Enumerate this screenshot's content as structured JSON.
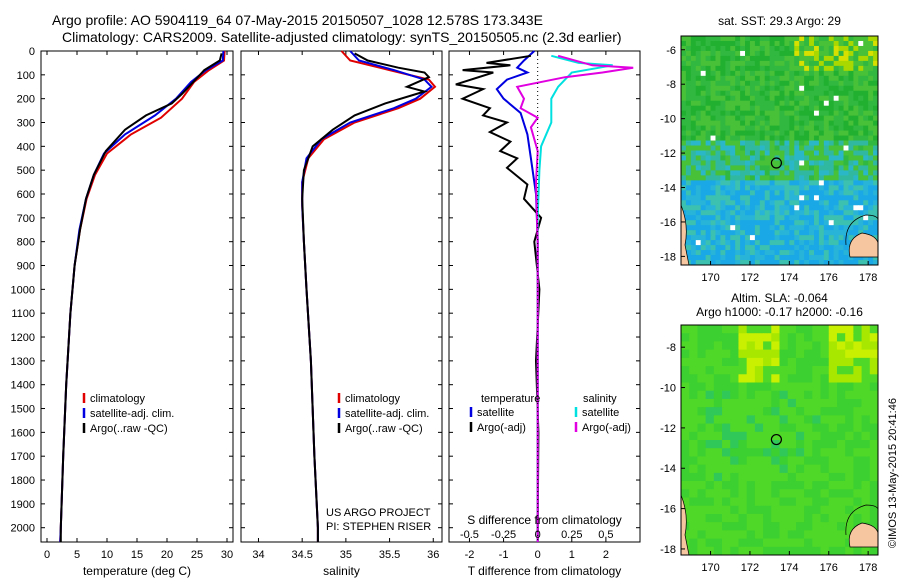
{
  "header": {
    "line1": "Argo profile: AO 5904119_64 07-May-2015 20150507_1028 12.578S 173.343E",
    "line2": "Climatology: CARS2009. Satellite-adjusted climatology: synTS_20150505.nc (2.3d earlier)"
  },
  "colors": {
    "climatology": "#e00000",
    "satellite": "#0000e0",
    "argo": "#000000",
    "sat_salinity": "#00e0e0",
    "argo_salinity": "#e000e0"
  },
  "chart_data": [
    {
      "type": "line",
      "xlabel": "temperature (deg C)",
      "xlim": [
        -1,
        31
      ],
      "xticks": [
        0,
        5,
        10,
        15,
        20,
        25,
        30
      ],
      "ylim": [
        0,
        2060
      ],
      "yticks": [
        0,
        100,
        200,
        300,
        400,
        500,
        600,
        700,
        800,
        900,
        1000,
        1100,
        1200,
        1300,
        1400,
        1500,
        1600,
        1700,
        1800,
        1900,
        2000
      ],
      "legend": [
        "climatology",
        "satellite-adj. clim.",
        "Argo(..raw -QC)"
      ],
      "series": [
        {
          "name": "climatology",
          "color": "#e00000",
          "points": [
            [
              29.6,
              0
            ],
            [
              29.5,
              40
            ],
            [
              27,
              80
            ],
            [
              24.5,
              130
            ],
            [
              22.5,
              200
            ],
            [
              19,
              280
            ],
            [
              14,
              350
            ],
            [
              10,
              430
            ],
            [
              8,
              520
            ],
            [
              6.6,
              620
            ],
            [
              5.5,
              750
            ],
            [
              4.6,
              900
            ],
            [
              3.9,
              1100
            ],
            [
              3.2,
              1400
            ],
            [
              2.7,
              1700
            ],
            [
              2.3,
              2000
            ],
            [
              2.2,
              2060
            ]
          ]
        },
        {
          "name": "satellite-adj. clim.",
          "color": "#0000e0",
          "points": [
            [
              29.4,
              0
            ],
            [
              29.3,
              40
            ],
            [
              26.5,
              80
            ],
            [
              24,
              130
            ],
            [
              21.5,
              200
            ],
            [
              18,
              270
            ],
            [
              13,
              350
            ],
            [
              9.5,
              430
            ],
            [
              7.8,
              520
            ],
            [
              6.5,
              620
            ],
            [
              5.4,
              750
            ],
            [
              4.6,
              900
            ],
            [
              3.9,
              1100
            ],
            [
              3.2,
              1400
            ],
            [
              2.7,
              1700
            ],
            [
              2.3,
              2000
            ],
            [
              2.2,
              2060
            ]
          ]
        },
        {
          "name": "Argo(..raw -QC)",
          "color": "#000000",
          "points": [
            [
              29.1,
              10
            ],
            [
              28.8,
              40
            ],
            [
              26.2,
              80
            ],
            [
              25.5,
              100
            ],
            [
              22.5,
              180
            ],
            [
              20.8,
              220
            ],
            [
              16.5,
              270
            ],
            [
              13,
              330
            ],
            [
              9.8,
              420
            ],
            [
              7.8,
              520
            ],
            [
              6.5,
              620
            ],
            [
              5.5,
              750
            ],
            [
              4.6,
              900
            ],
            [
              3.9,
              1100
            ],
            [
              3.2,
              1400
            ],
            [
              2.7,
              1700
            ],
            [
              2.3,
              2000
            ],
            [
              2.3,
              2060
            ]
          ]
        }
      ]
    },
    {
      "type": "line",
      "xlabel": "salinity",
      "xlim": [
        33.8,
        36.1
      ],
      "xticks": [
        34,
        34.5,
        35,
        35.5,
        36
      ],
      "xtick_labels": [
        "34",
        "34.5",
        "35",
        "35.5",
        "36"
      ],
      "ylim": [
        0,
        2060
      ],
      "legend": [
        "climatology",
        "satellite-adj. clim.",
        "Argo(..raw -QC)"
      ],
      "credit1": "US ARGO PROJECT",
      "credit2": "PI: STEPHEN RISER",
      "series": [
        {
          "name": "climatology",
          "color": "#e00000",
          "points": [
            [
              34.95,
              0
            ],
            [
              35.05,
              40
            ],
            [
              35.5,
              80
            ],
            [
              35.95,
              120
            ],
            [
              36.02,
              150
            ],
            [
              35.85,
              200
            ],
            [
              35.6,
              240
            ],
            [
              35.1,
              300
            ],
            [
              34.75,
              370
            ],
            [
              34.57,
              450
            ],
            [
              34.5,
              550
            ],
            [
              34.5,
              650
            ],
            [
              34.52,
              800
            ],
            [
              34.55,
              1000
            ],
            [
              34.6,
              1300
            ],
            [
              34.64,
              1700
            ],
            [
              34.68,
              2000
            ],
            [
              34.68,
              2060
            ]
          ]
        },
        {
          "name": "satellite-adj. clim.",
          "color": "#0000e0",
          "points": [
            [
              35.05,
              0
            ],
            [
              35.15,
              40
            ],
            [
              35.55,
              80
            ],
            [
              35.9,
              120
            ],
            [
              35.98,
              150
            ],
            [
              35.8,
              200
            ],
            [
              35.55,
              240
            ],
            [
              35.05,
              300
            ],
            [
              34.72,
              370
            ],
            [
              34.55,
              450
            ],
            [
              34.5,
              550
            ],
            [
              34.5,
              650
            ],
            [
              34.52,
              800
            ],
            [
              34.55,
              1000
            ],
            [
              34.6,
              1300
            ],
            [
              34.64,
              1700
            ],
            [
              34.68,
              2000
            ],
            [
              34.68,
              2060
            ]
          ]
        },
        {
          "name": "Argo(..raw -QC)",
          "color": "#000000",
          "points": [
            [
              35.1,
              10
            ],
            [
              35.25,
              40
            ],
            [
              35.6,
              70
            ],
            [
              35.9,
              90
            ],
            [
              35.95,
              110
            ],
            [
              35.7,
              150
            ],
            [
              35.9,
              170
            ],
            [
              35.45,
              220
            ],
            [
              35.1,
              270
            ],
            [
              34.85,
              330
            ],
            [
              34.62,
              400
            ],
            [
              34.52,
              500
            ],
            [
              34.5,
              620
            ],
            [
              34.52,
              800
            ],
            [
              34.55,
              1000
            ],
            [
              34.6,
              1300
            ],
            [
              34.64,
              1700
            ],
            [
              34.68,
              2000
            ],
            [
              34.68,
              2060
            ]
          ]
        }
      ]
    },
    {
      "type": "line",
      "xlabel": "T difference from climatology",
      "top_label": "S difference from climatology",
      "xlim": [
        -2.6,
        3.0
      ],
      "xticks": [
        -2,
        -1,
        0,
        1,
        2
      ],
      "s_xtick_labels": [
        "-0.5",
        "-0.25",
        "0",
        "0.25",
        "0.5"
      ],
      "ylim": [
        0,
        2060
      ],
      "legend_left_title": "temperature",
      "legend_right_title": "salinity",
      "legend_left": [
        "satellite",
        "Argo(-adj)"
      ],
      "legend_right": [
        "satellite",
        "Argo(-adj)"
      ],
      "series": [
        {
          "name": "temperature satellite",
          "color": "#0000e0",
          "points": [
            [
              -0.1,
              0
            ],
            [
              -0.4,
              40
            ],
            [
              -0.6,
              70
            ],
            [
              -0.3,
              90
            ],
            [
              -0.9,
              120
            ],
            [
              -1.2,
              160
            ],
            [
              -1.0,
              200
            ],
            [
              -0.5,
              260
            ],
            [
              -0.3,
              350
            ],
            [
              -0.2,
              450
            ],
            [
              -0.05,
              600
            ],
            [
              0,
              800
            ],
            [
              0,
              1000
            ],
            [
              0,
              1500
            ],
            [
              0,
              2000
            ],
            [
              0,
              2060
            ]
          ]
        },
        {
          "name": "temperature Argo(-adj)",
          "color": "#000000",
          "points": [
            [
              -0.2,
              20
            ],
            [
              -1.5,
              50
            ],
            [
              -0.8,
              60
            ],
            [
              -2.2,
              80
            ],
            [
              -1.3,
              90
            ],
            [
              -2.4,
              140
            ],
            [
              -1.6,
              160
            ],
            [
              -2.2,
              200
            ],
            [
              -1.4,
              240
            ],
            [
              -1.6,
              270
            ],
            [
              -0.9,
              300
            ],
            [
              -1.4,
              340
            ],
            [
              -0.8,
              380
            ],
            [
              -1.1,
              420
            ],
            [
              -0.6,
              450
            ],
            [
              -0.9,
              490
            ],
            [
              -0.3,
              560
            ],
            [
              -0.4,
              620
            ],
            [
              0.1,
              700
            ],
            [
              -0.1,
              800
            ],
            [
              0.05,
              1000
            ],
            [
              -0.05,
              1300
            ],
            [
              0.02,
              1600
            ],
            [
              0,
              2000
            ],
            [
              0,
              2060
            ]
          ]
        },
        {
          "name": "salinity satellite",
          "color": "#00e0e0",
          "points": [
            [
              0.4,
              20
            ],
            [
              1.2,
              50
            ],
            [
              2.2,
              60
            ],
            [
              1.0,
              90
            ],
            [
              0.6,
              150
            ],
            [
              0.4,
              200
            ],
            [
              0.4,
              300
            ],
            [
              0.1,
              400
            ],
            [
              0.05,
              500
            ],
            [
              0,
              700
            ],
            [
              0,
              1000
            ],
            [
              0,
              1500
            ],
            [
              0,
              2000
            ],
            [
              0,
              2060
            ]
          ]
        },
        {
          "name": "salinity Argo(-adj)",
          "color": "#e000e0",
          "points": [
            [
              0.6,
              20
            ],
            [
              1.6,
              60
            ],
            [
              2.8,
              70
            ],
            [
              1.9,
              90
            ],
            [
              0.8,
              110
            ],
            [
              -0.6,
              150
            ],
            [
              -0.4,
              200
            ],
            [
              -0.5,
              240
            ],
            [
              0,
              280
            ],
            [
              -0.2,
              320
            ],
            [
              0,
              420
            ],
            [
              -0.05,
              550
            ],
            [
              0,
              800
            ],
            [
              0,
              1000
            ],
            [
              0,
              1500
            ],
            [
              0,
              2000
            ],
            [
              0,
              2060
            ]
          ]
        }
      ]
    },
    {
      "type": "heatmap",
      "title": "sat. SST: 29.3  Argo: 29",
      "xlim": [
        168.5,
        178.5
      ],
      "ylim": [
        -18.5,
        -5.2
      ],
      "xticks": [
        170,
        172,
        174,
        176,
        178
      ],
      "yticks": [
        -6,
        -8,
        -10,
        -12,
        -14,
        -16,
        -18
      ],
      "argo_position": [
        173.343,
        -12.578
      ]
    },
    {
      "type": "heatmap",
      "title": "Altim. SLA: -0.064",
      "subtitle": "Argo h1000: -0.17  h2000: -0.16",
      "xlim": [
        168.5,
        178.5
      ],
      "ylim": [
        -18.3,
        -6.9
      ],
      "xticks": [
        170,
        172,
        174,
        176,
        178
      ],
      "yticks": [
        -8,
        -10,
        -12,
        -14,
        -16,
        -18
      ],
      "argo_position": [
        173.343,
        -12.578
      ]
    }
  ],
  "watermark": "©IMOS 13-May-2015 20:41:46"
}
